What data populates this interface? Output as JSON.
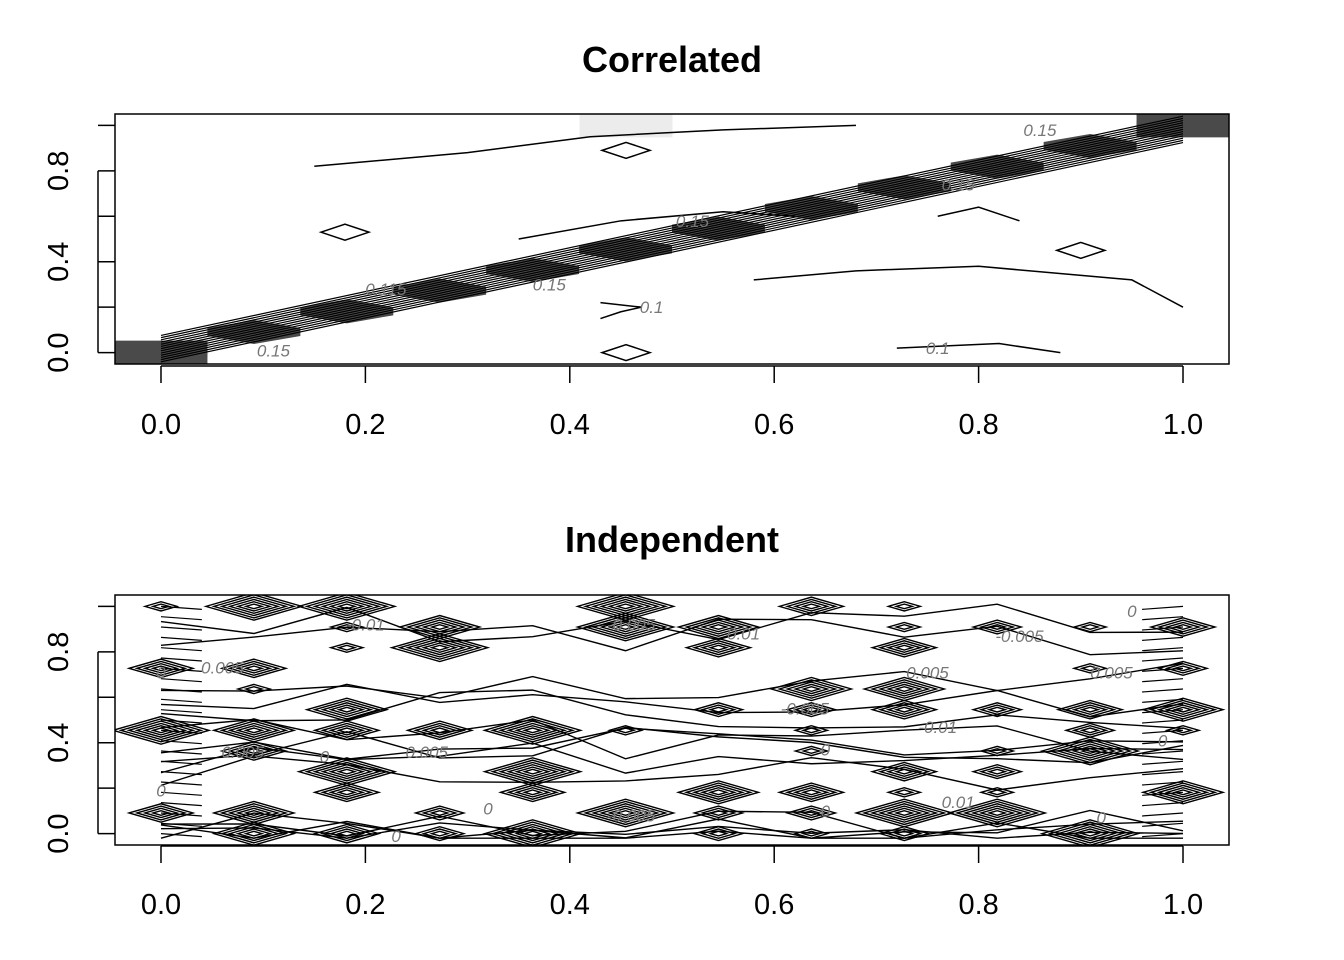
{
  "chart_data": [
    {
      "type": "heatmap",
      "title": "Correlated",
      "xlabel": "",
      "ylabel": "",
      "xlim": [
        -0.045,
        1.045
      ],
      "ylim": [
        -0.05,
        1.05
      ],
      "x_ticks": [
        "0.0",
        "0.2",
        "0.4",
        "0.6",
        "0.8",
        "1.0"
      ],
      "x_tick_values": [
        0.0,
        0.2,
        0.4,
        0.6,
        0.8,
        1.0
      ],
      "y_ticks": [
        "0.0",
        "0.4",
        "0.8"
      ],
      "y_tick_values": [
        0.0,
        0.4,
        0.8
      ],
      "grid": false,
      "cell_grid": 12,
      "dark_cells": [
        [
          0.0,
          0.0
        ],
        [
          1.0,
          1.0
        ]
      ],
      "diagonal_band": {
        "from": [
          0.0,
          0.0
        ],
        "to": [
          1.0,
          1.0
        ],
        "fill": "#4a4a4a"
      },
      "light_cell": {
        "x": 0.455,
        "y": 1.0,
        "fill": "#ececec"
      },
      "contour_labels": [
        {
          "text": "0.15",
          "x": 0.86,
          "y": 0.98
        },
        {
          "text": "0.15",
          "x": 0.78,
          "y": 0.74
        },
        {
          "text": "0.15",
          "x": 0.52,
          "y": 0.58
        },
        {
          "text": "0.115",
          "x": 0.22,
          "y": 0.28
        },
        {
          "text": "0.15",
          "x": 0.38,
          "y": 0.3
        },
        {
          "text": "0.1",
          "x": 0.48,
          "y": 0.2
        },
        {
          "text": "0.1",
          "x": 0.76,
          "y": 0.02
        },
        {
          "text": "0.15",
          "x": 0.11,
          "y": 0.01
        }
      ]
    },
    {
      "type": "heatmap",
      "title": "Independent",
      "xlabel": "",
      "ylabel": "",
      "xlim": [
        -0.045,
        1.045
      ],
      "ylim": [
        -0.05,
        1.05
      ],
      "x_ticks": [
        "0.0",
        "0.2",
        "0.4",
        "0.6",
        "0.8",
        "1.0"
      ],
      "x_tick_values": [
        0.0,
        0.2,
        0.4,
        0.6,
        0.8,
        1.0
      ],
      "y_ticks": [
        "0.0",
        "0.4",
        "0.8"
      ],
      "y_tick_values": [
        0.0,
        0.4,
        0.8
      ],
      "grid": false,
      "contour_labels": [
        {
          "text": "-0.01",
          "x": 0.2,
          "y": 0.92
        },
        {
          "text": "-0.005",
          "x": 0.46,
          "y": 0.92
        },
        {
          "text": "0.01",
          "x": 0.57,
          "y": 0.88
        },
        {
          "text": "-0.005",
          "x": 0.84,
          "y": 0.87
        },
        {
          "text": "0",
          "x": 0.95,
          "y": 0.98
        },
        {
          "text": "0.005",
          "x": 0.06,
          "y": 0.73
        },
        {
          "text": "0.005",
          "x": 0.75,
          "y": 0.71
        },
        {
          "text": "0.005",
          "x": 0.93,
          "y": 0.71
        },
        {
          "text": "0",
          "x": 0.0,
          "y": 0.71
        },
        {
          "text": "-0.005",
          "x": 0.63,
          "y": 0.55
        },
        {
          "text": "-0.01",
          "x": 0.76,
          "y": 0.47
        },
        {
          "text": "0.005",
          "x": 0.08,
          "y": 0.36
        },
        {
          "text": "0",
          "x": 0.16,
          "y": 0.34
        },
        {
          "text": "0.005",
          "x": 0.26,
          "y": 0.36
        },
        {
          "text": "0",
          "x": 0.65,
          "y": 0.37
        },
        {
          "text": "0.01",
          "x": 0.78,
          "y": 0.14
        },
        {
          "text": "0",
          "x": 0.0,
          "y": 0.19
        },
        {
          "text": "0",
          "x": 0.32,
          "y": 0.11
        },
        {
          "text": "-0.005",
          "x": 0.46,
          "y": 0.08
        },
        {
          "text": "0",
          "x": 0.65,
          "y": 0.1
        },
        {
          "text": "0",
          "x": 0.23,
          "y": -0.01
        },
        {
          "text": "0",
          "x": 0.92,
          "y": 0.07
        },
        {
          "text": "0",
          "x": 0.98,
          "y": 0.41
        }
      ]
    }
  ]
}
